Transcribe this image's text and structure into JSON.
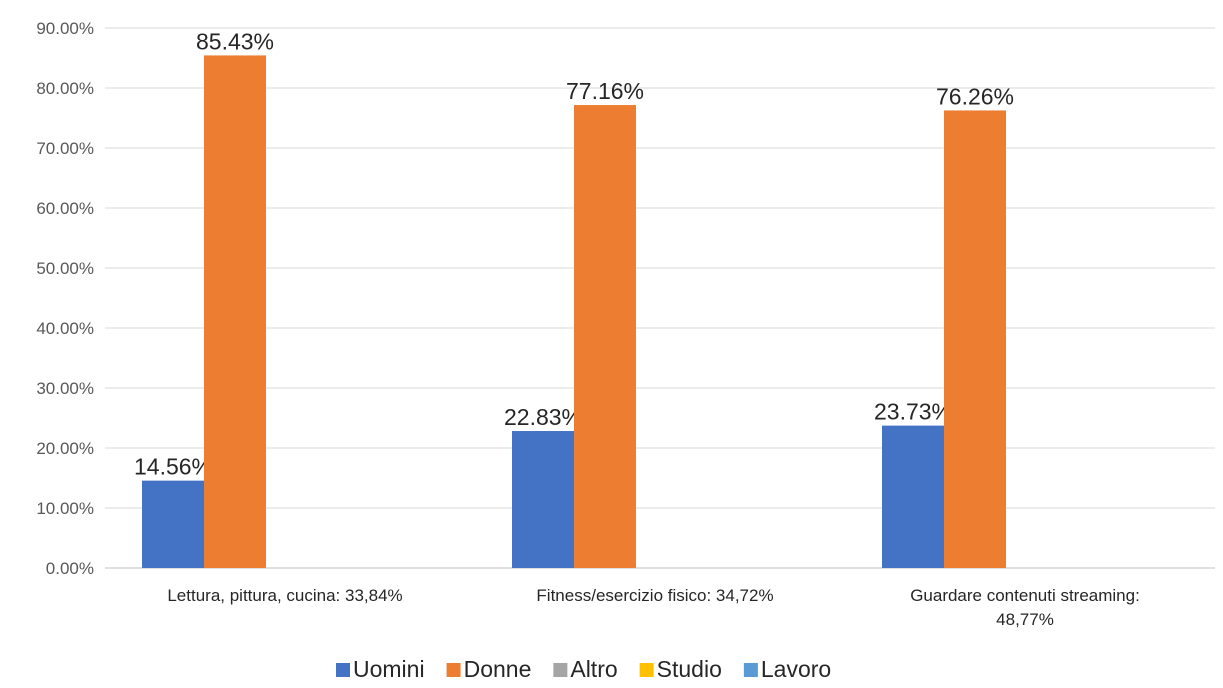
{
  "chart_data": {
    "type": "bar",
    "categories": [
      [
        "Lettura, pittura, cucina: 33,84%"
      ],
      [
        "Fitness/esercizio fisico: 34,72%"
      ],
      [
        "Guardare contenuti streaming:",
        "48,77%"
      ]
    ],
    "series": [
      {
        "name": "Uomini",
        "color": "#4472C4",
        "values": [
          14.56,
          22.83,
          23.73
        ],
        "labels": [
          "14.56%",
          "22.83%",
          "23.73%"
        ]
      },
      {
        "name": "Donne",
        "color": "#ED7D31",
        "values": [
          85.43,
          77.16,
          76.26
        ],
        "labels": [
          "85.43%",
          "77.16%",
          "76.26%"
        ]
      },
      {
        "name": "Altro",
        "color": "#A5A5A5",
        "values": [
          null,
          null,
          null
        ]
      },
      {
        "name": "Studio",
        "color": "#FFC000",
        "values": [
          null,
          null,
          null
        ]
      },
      {
        "name": "Lavoro",
        "color": "#5B9BD5",
        "values": [
          null,
          null,
          null
        ]
      }
    ],
    "ylim": [
      0,
      90
    ],
    "yticks": [
      "0.00%",
      "10.00%",
      "20.00%",
      "30.00%",
      "40.00%",
      "50.00%",
      "60.00%",
      "70.00%",
      "80.00%",
      "90.00%"
    ],
    "grid": true,
    "legend_position": "bottom",
    "title": "",
    "xlabel": "",
    "ylabel": ""
  }
}
